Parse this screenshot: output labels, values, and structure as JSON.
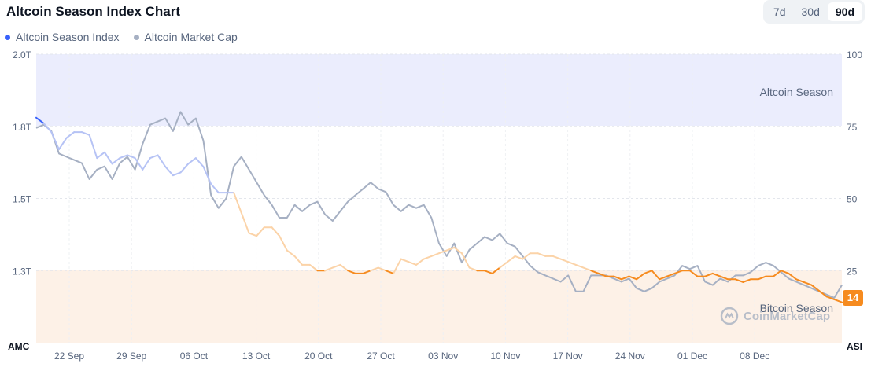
{
  "header": {
    "title": "Altcoin Season Index Chart"
  },
  "legend": {
    "items": [
      {
        "label": "Altcoin Season Index",
        "color": "#3861fb"
      },
      {
        "label": "Altcoin Market Cap",
        "color": "#a6b0c3"
      }
    ]
  },
  "range": {
    "options": [
      "7d",
      "30d",
      "90d"
    ],
    "selected": "90d"
  },
  "zones": {
    "altcoin_label": "Altcoin Season",
    "bitcoin_label": "Bitcoin Season"
  },
  "watermark": {
    "text": "CoinMarketCap"
  },
  "current_badge": "14",
  "chart_data": {
    "type": "line",
    "x_labels": [
      "22 Sep",
      "29 Sep",
      "06 Oct",
      "13 Oct",
      "20 Oct",
      "27 Oct",
      "03 Nov",
      "10 Nov",
      "17 Nov",
      "24 Nov",
      "01 Dec",
      "08 Dec"
    ],
    "left_axis": {
      "label": "AMC",
      "ticks": [
        "2.0T",
        "1.8T",
        "1.5T",
        "1.3T"
      ],
      "range": [
        1.1,
        2.0
      ]
    },
    "right_axis": {
      "label": "ASI",
      "ticks": [
        "100",
        "75",
        "50",
        "25"
      ],
      "range": [
        0,
        100
      ]
    },
    "thresholds": {
      "altcoin": 75,
      "bitcoin": 25
    },
    "series": [
      {
        "name": "Altcoin Season Index",
        "axis": "right",
        "values": [
          78,
          76,
          73,
          67,
          71,
          73,
          73,
          72,
          64,
          66,
          62,
          64,
          65,
          64,
          60,
          64,
          65,
          61,
          58,
          59,
          62,
          64,
          61,
          55,
          52,
          52,
          52,
          45,
          38,
          37,
          40,
          40,
          37,
          32,
          30,
          27,
          27,
          25,
          25,
          26,
          27,
          25,
          24,
          24,
          25,
          26,
          25,
          24,
          29,
          28,
          27,
          29,
          30,
          31,
          32,
          33,
          31,
          26,
          25,
          25,
          24,
          26,
          28,
          30,
          29,
          31,
          31,
          30,
          30,
          29,
          28,
          27,
          26,
          25,
          24,
          23,
          23,
          22,
          23,
          22,
          24,
          25,
          22,
          23,
          24,
          25,
          25,
          23,
          23,
          24,
          23,
          22,
          22,
          21,
          22,
          22,
          23,
          23,
          25,
          24,
          22,
          21,
          20,
          18,
          16,
          15,
          14
        ]
      },
      {
        "name": "Altcoin Market Cap",
        "axis": "left",
        "values": [
          1.77,
          1.78,
          1.76,
          1.69,
          1.68,
          1.67,
          1.66,
          1.61,
          1.64,
          1.65,
          1.61,
          1.66,
          1.68,
          1.64,
          1.72,
          1.78,
          1.79,
          1.8,
          1.76,
          1.82,
          1.78,
          1.8,
          1.73,
          1.56,
          1.52,
          1.55,
          1.65,
          1.68,
          1.64,
          1.6,
          1.56,
          1.53,
          1.49,
          1.49,
          1.53,
          1.51,
          1.53,
          1.54,
          1.5,
          1.48,
          1.51,
          1.54,
          1.56,
          1.58,
          1.6,
          1.58,
          1.57,
          1.53,
          1.51,
          1.53,
          1.52,
          1.53,
          1.49,
          1.41,
          1.37,
          1.41,
          1.35,
          1.39,
          1.41,
          1.43,
          1.42,
          1.44,
          1.41,
          1.4,
          1.37,
          1.34,
          1.32,
          1.31,
          1.3,
          1.29,
          1.31,
          1.26,
          1.26,
          1.31,
          1.31,
          1.31,
          1.3,
          1.29,
          1.3,
          1.27,
          1.26,
          1.27,
          1.29,
          1.3,
          1.31,
          1.34,
          1.33,
          1.34,
          1.29,
          1.28,
          1.3,
          1.29,
          1.31,
          1.31,
          1.32,
          1.34,
          1.35,
          1.34,
          1.32,
          1.3,
          1.29,
          1.28,
          1.27,
          1.26,
          1.25,
          1.24,
          1.28
        ]
      }
    ]
  }
}
